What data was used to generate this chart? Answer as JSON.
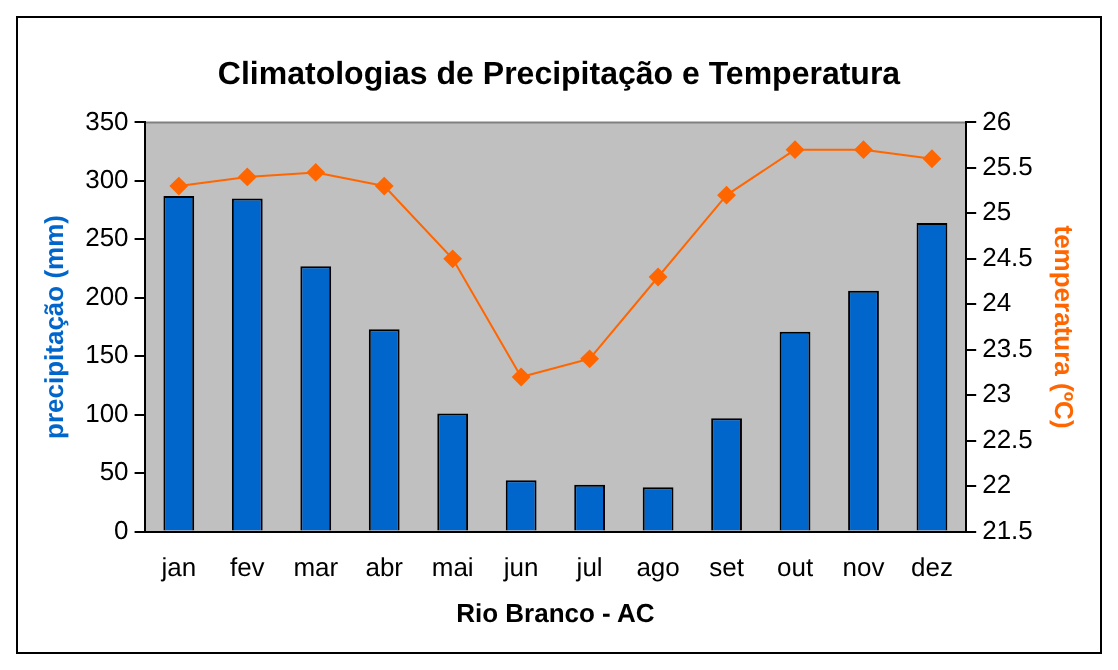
{
  "chart_data": {
    "type": "bar",
    "title": "Climatologias de Precipitação e Temperatura",
    "xlabel": "Rio Branco - AC",
    "ylabel": "precipitação (mm)",
    "y2label": "temperatura (ºC)",
    "categories": [
      "jan",
      "fev",
      "mar",
      "abr",
      "mai",
      "jun",
      "jul",
      "ago",
      "set",
      "out",
      "nov",
      "dez"
    ],
    "series": [
      {
        "color": "#0066cc",
        "values": [
          287,
          285,
          227,
          173,
          101,
          44,
          40,
          38,
          97,
          171,
          206,
          264
        ]
      },
      {
        "type": "line",
        "axis": "y2",
        "color": "#ff6600",
        "marker": "diamond",
        "values": [
          25.3,
          25.4,
          25.45,
          25.3,
          24.5,
          23.2,
          23.4,
          24.3,
          25.2,
          25.7,
          25.7,
          25.6
        ]
      }
    ],
    "ylim": [
      0,
      350
    ],
    "yticks": [
      0,
      50,
      100,
      150,
      200,
      250,
      300,
      350
    ],
    "y2lim": [
      21.5,
      26
    ],
    "y2ticks": [
      21.5,
      22,
      22.5,
      23,
      23.5,
      24,
      24.5,
      25,
      25.5,
      26
    ],
    "grid": false,
    "legend": false
  }
}
